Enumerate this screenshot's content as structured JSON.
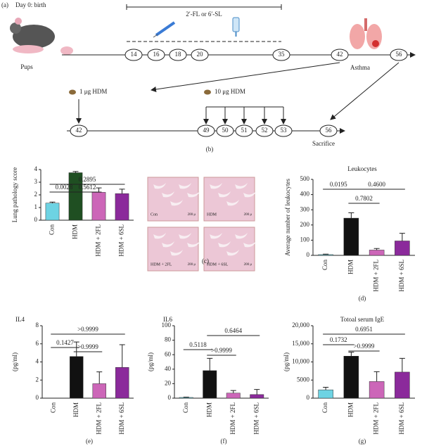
{
  "timeline": {
    "panel": "(a)",
    "start": "Day 0: birth",
    "treatment": "2′-FL or 6′-SL",
    "pups": "Pups",
    "asthma": "Asthma",
    "days": [
      "14",
      "16",
      "18",
      "20",
      "35",
      "42",
      "56"
    ]
  },
  "challenge": {
    "panel": "(b)",
    "sensitization": "1 μg HDM",
    "boost": "10 μg HDM",
    "end": "Sacrifice",
    "days": [
      "42",
      "49",
      "50",
      "51",
      "52",
      "53",
      "56"
    ]
  },
  "histology": {
    "labels": [
      "Con",
      "HDM",
      "HDM + 2FL",
      "HDM + 6SL"
    ],
    "scale": "200 μ"
  },
  "chart_data": [
    {
      "type": "bar",
      "caption": "(c)",
      "ylabel": "Lung pathology score",
      "categories": [
        "Con",
        "HDM",
        "HDM + 2FL",
        "HDM + 6SL"
      ],
      "values": [
        1.35,
        3.75,
        2.2,
        2.1
      ],
      "errors": [
        0.08,
        0.1,
        0.35,
        0.35
      ],
      "colors": [
        "#6dd3e3",
        "#1f4f22",
        "#cc66b8",
        "#8b2a9b"
      ],
      "ylim": [
        0,
        4
      ],
      "yticks": [
        0,
        1,
        2,
        3,
        4
      ],
      "annotations": [
        "0.0028",
        "0.5612",
        "0.2895"
      ]
    },
    {
      "type": "bar",
      "caption": "(d)",
      "title": "Leukocytes",
      "ylabel": "Average number of leukocytes",
      "categories": [
        "Con",
        "HDM",
        "HDM + 2FL",
        "HDM + 6SL"
      ],
      "values": [
        5,
        245,
        35,
        95
      ],
      "errors": [
        3,
        35,
        10,
        50
      ],
      "colors": [
        "#6dd3e3",
        "#111111",
        "#cc66b8",
        "#8b2a9b"
      ],
      "ylim": [
        0,
        500
      ],
      "yticks": [
        0,
        100,
        200,
        300,
        400,
        500
      ],
      "annotations": [
        "0.0195",
        "0.4600",
        "0.7802"
      ]
    },
    {
      "type": "bar",
      "caption": "(e)",
      "title": "IL4",
      "ylabel": "(pg/ml)",
      "categories": [
        "Con",
        "HDM",
        "HDM + 2FL",
        "HDM + 6SL"
      ],
      "values": [
        0,
        4.6,
        1.6,
        3.4
      ],
      "errors": [
        0,
        1.6,
        1.3,
        2.5
      ],
      "colors": [
        "#6dd3e3",
        "#111111",
        "#cc66b8",
        "#8b2a9b"
      ],
      "ylim": [
        0,
        8
      ],
      "yticks": [
        0,
        2,
        4,
        6,
        8
      ],
      "annotations": [
        "0.1427",
        ">0.9999",
        ">0.9999"
      ]
    },
    {
      "type": "bar",
      "caption": "(f)",
      "title": "IL6",
      "ylabel": "(pg/ml)",
      "categories": [
        "Con",
        "HDM",
        "HDM + 2FL",
        "HDM + 6SL"
      ],
      "values": [
        1,
        38,
        7,
        5
      ],
      "errors": [
        0.5,
        17,
        3.5,
        7
      ],
      "colors": [
        "#6dd3e3",
        "#111111",
        "#cc66b8",
        "#8b2a9b"
      ],
      "ylim": [
        0,
        100
      ],
      "yticks": [
        0,
        20,
        40,
        60,
        80,
        100
      ],
      "annotations": [
        "0.5118",
        ">0.9999",
        "0.6464"
      ]
    },
    {
      "type": "bar",
      "caption": "(g)",
      "title": "Totoal serum IgE",
      "ylabel": "(pg/ml)",
      "categories": [
        "Con",
        "HDM",
        "HDM + 2FL",
        "HDM + 6SL"
      ],
      "values": [
        2300,
        11600,
        4600,
        7200
      ],
      "errors": [
        700,
        1100,
        2700,
        3800
      ],
      "colors": [
        "#6dd3e3",
        "#111111",
        "#cc66b8",
        "#8b2a9b"
      ],
      "ylim": [
        0,
        20000
      ],
      "yticks": [
        0,
        {
          "value": 5000,
          "label": "5000"
        },
        {
          "value": 10000,
          "label": "10,000"
        },
        {
          "value": 15000,
          "label": "15,000"
        },
        {
          "value": 20000,
          "label": "20,000"
        }
      ],
      "annotations": [
        "0.1732",
        "0.6951",
        ">0.9999"
      ]
    }
  ]
}
